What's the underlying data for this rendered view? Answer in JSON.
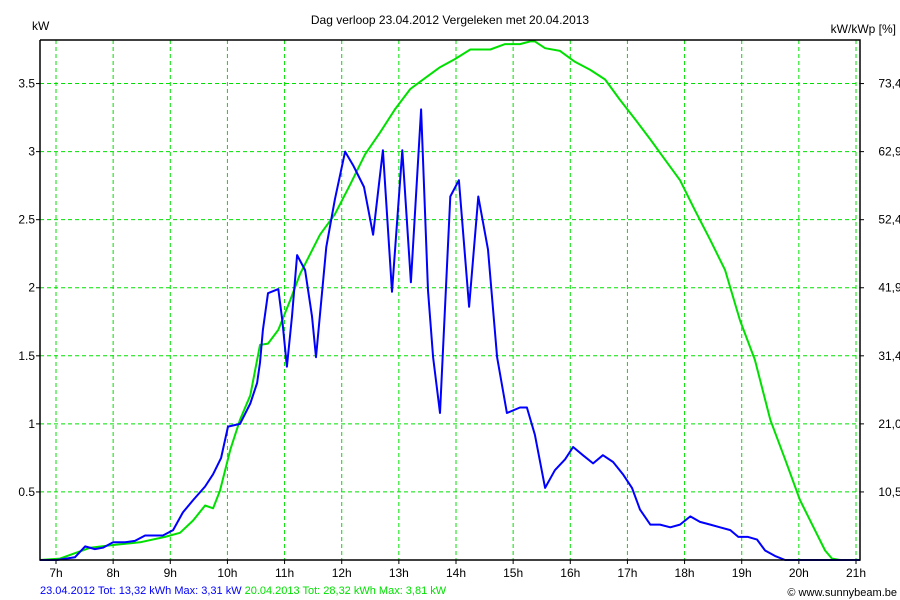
{
  "chart_data": {
    "type": "line",
    "title": "Dag  verloop 23.04.2012   Vergeleken met 20.04.2013",
    "ylabel": "kW",
    "y2label": "kW/kWp [%]",
    "xlabel": "",
    "xlim": [
      6.72,
      21.07
    ],
    "ylim": [
      0,
      3.82
    ],
    "grid": true,
    "x_ticks": [
      7,
      8,
      9,
      10,
      11,
      12,
      13,
      14,
      15,
      16,
      17,
      18,
      19,
      20,
      21
    ],
    "x_tick_labels": [
      "7h",
      "8h",
      "9h",
      "10h",
      "11h",
      "12h",
      "13h",
      "14h",
      "15h",
      "16h",
      "17h",
      "18h",
      "19h",
      "20h",
      "21h"
    ],
    "y_ticks": [
      0.5,
      1,
      1.5,
      2,
      2.5,
      3,
      3.5
    ],
    "y_tick_labels": [
      "0.5",
      "1",
      "1.5",
      "2",
      "2.5",
      "3",
      "3.5"
    ],
    "y2_tick_labels": [
      "10,5",
      "21,0",
      "31,4",
      "41,9",
      "52,4",
      "62,9",
      "73,4"
    ],
    "series": [
      {
        "name": "23.04.2012",
        "color": "#0000ff",
        "legend": "23.04.2012 Tot: 13,32 kWh Max: 3,31 kW",
        "x": [
          6.72,
          7.02,
          7.33,
          7.51,
          7.68,
          7.82,
          8.0,
          8.21,
          8.38,
          8.56,
          8.73,
          8.87,
          9.05,
          9.22,
          9.4,
          9.61,
          9.75,
          9.89,
          10.01,
          10.22,
          10.4,
          10.52,
          10.57,
          10.62,
          10.71,
          10.89,
          10.96,
          11.04,
          11.13,
          11.22,
          11.36,
          11.48,
          11.55,
          11.73,
          11.88,
          12.06,
          12.2,
          12.39,
          12.55,
          12.72,
          12.88,
          13.06,
          13.21,
          13.39,
          13.51,
          13.6,
          13.72,
          13.9,
          14.05,
          14.23,
          14.39,
          14.56,
          14.72,
          14.89,
          15.12,
          15.24,
          15.38,
          15.56,
          15.73,
          15.91,
          16.05,
          16.22,
          16.4,
          16.57,
          16.75,
          16.92,
          17.08,
          17.22,
          17.4,
          17.57,
          17.75,
          17.92,
          18.1,
          18.27,
          18.45,
          18.62,
          18.8,
          18.94,
          19.11,
          19.27,
          19.41,
          19.58,
          19.76,
          21.07
        ],
        "y": [
          0,
          0,
          0.02,
          0.1,
          0.08,
          0.09,
          0.13,
          0.13,
          0.14,
          0.18,
          0.18,
          0.18,
          0.22,
          0.35,
          0.44,
          0.54,
          0.63,
          0.75,
          0.98,
          1.0,
          1.15,
          1.3,
          1.45,
          1.69,
          1.96,
          1.99,
          1.76,
          1.42,
          1.79,
          2.24,
          2.13,
          1.79,
          1.49,
          2.3,
          2.65,
          3.0,
          2.9,
          2.74,
          2.39,
          3.01,
          1.97,
          3.01,
          2.04,
          3.31,
          1.98,
          1.49,
          1.08,
          2.67,
          2.79,
          1.86,
          2.67,
          2.28,
          1.49,
          1.08,
          1.12,
          1.12,
          0.92,
          0.53,
          0.66,
          0.74,
          0.83,
          0.77,
          0.71,
          0.77,
          0.72,
          0.63,
          0.53,
          0.37,
          0.26,
          0.26,
          0.24,
          0.26,
          0.32,
          0.28,
          0.26,
          0.24,
          0.22,
          0.17,
          0.17,
          0.15,
          0.07,
          0.03,
          0,
          0
        ]
      },
      {
        "name": "20.04.2013",
        "color": "#00e000",
        "legend": "20.04.2013 Tot: 28,32 kWh Max: 3,81 kW",
        "x": [
          6.72,
          7.07,
          7.33,
          7.6,
          8.0,
          8.47,
          8.91,
          9.17,
          9.4,
          9.61,
          9.75,
          9.87,
          10.05,
          10.22,
          10.4,
          10.57,
          10.71,
          10.89,
          11.1,
          11.27,
          11.62,
          11.88,
          12.15,
          12.41,
          12.67,
          12.93,
          13.2,
          13.46,
          13.72,
          13.98,
          14.25,
          14.6,
          14.86,
          15.12,
          15.3,
          15.38,
          15.56,
          15.82,
          16.08,
          16.35,
          16.61,
          16.87,
          17.13,
          17.4,
          17.66,
          17.92,
          18.18,
          18.45,
          18.71,
          18.97,
          19.23,
          19.5,
          19.76,
          20.02,
          20.28,
          20.46,
          20.58,
          20.72,
          21.07
        ],
        "y": [
          0,
          0.01,
          0.05,
          0.09,
          0.11,
          0.13,
          0.17,
          0.2,
          0.29,
          0.4,
          0.38,
          0.51,
          0.81,
          1.03,
          1.21,
          1.58,
          1.59,
          1.69,
          1.91,
          2.1,
          2.39,
          2.54,
          2.76,
          2.98,
          3.14,
          3.31,
          3.46,
          3.54,
          3.62,
          3.68,
          3.75,
          3.75,
          3.79,
          3.79,
          3.81,
          3.81,
          3.76,
          3.74,
          3.66,
          3.6,
          3.53,
          3.38,
          3.24,
          3.09,
          2.94,
          2.79,
          2.57,
          2.35,
          2.13,
          1.76,
          1.47,
          1.03,
          0.74,
          0.44,
          0.22,
          0.07,
          0.01,
          0,
          0
        ]
      }
    ],
    "copyright": "© www.sunnybeam.be"
  }
}
